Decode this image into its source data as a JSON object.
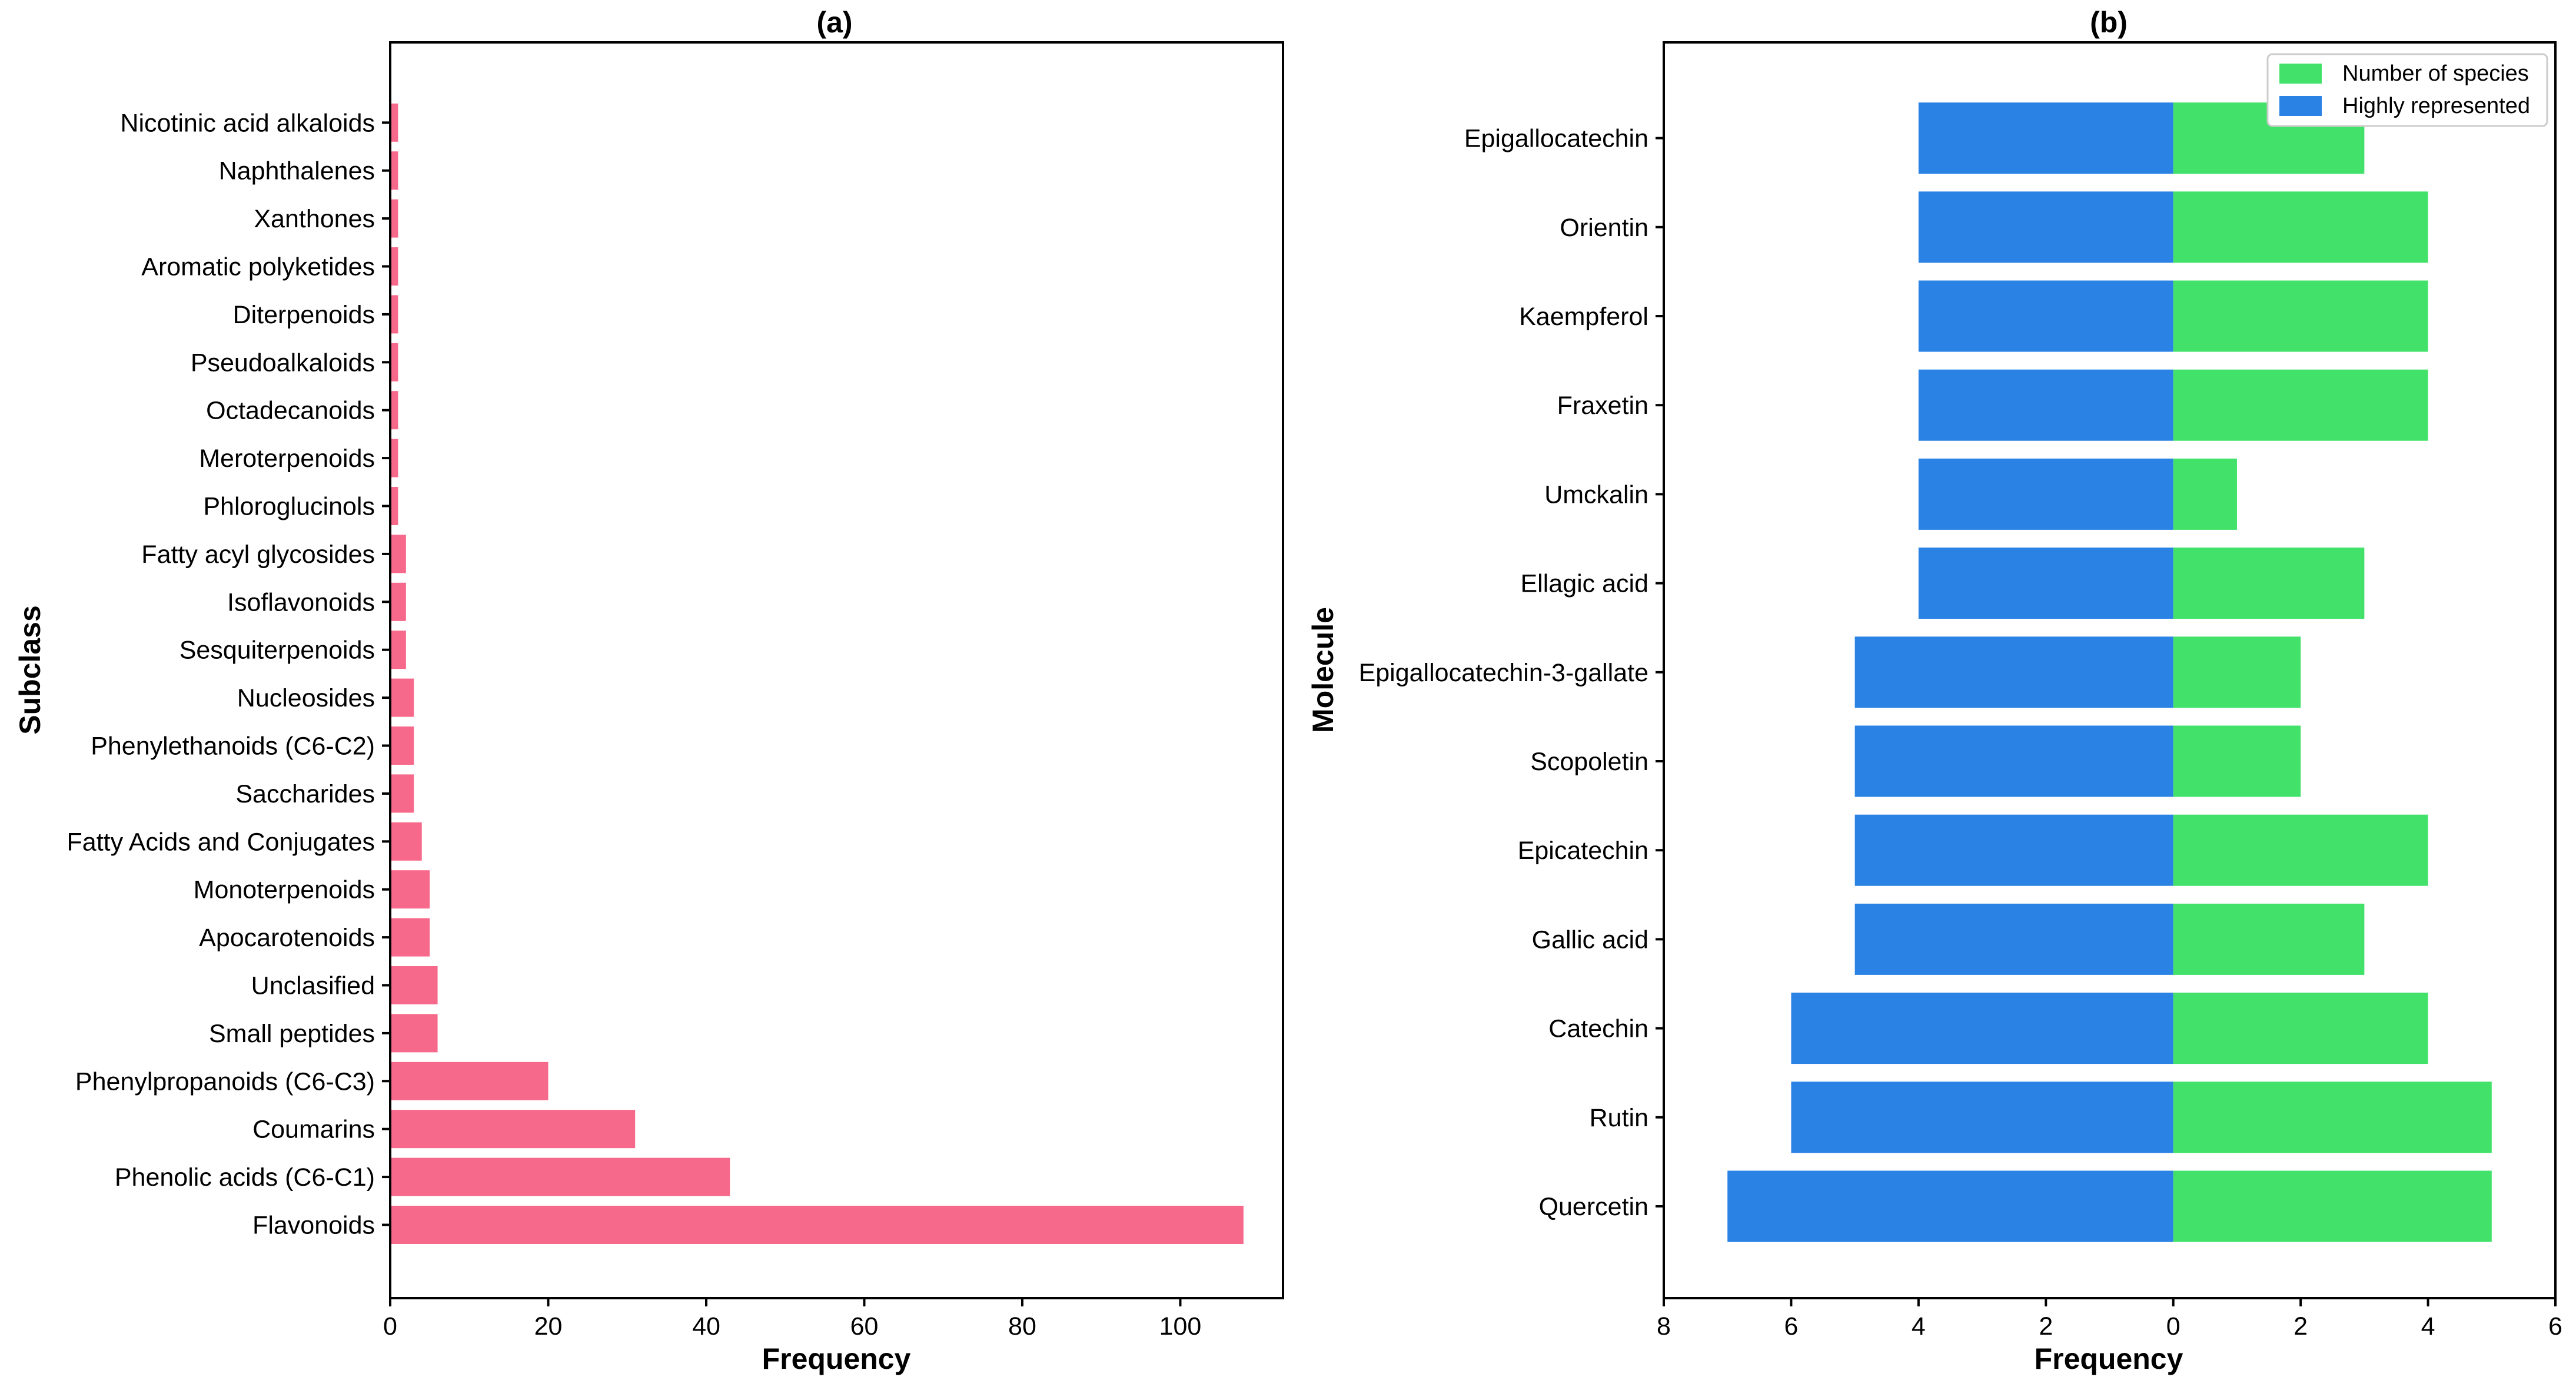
{
  "chart_data": [
    {
      "type": "bar",
      "orientation": "horizontal",
      "title": "(a)",
      "xlabel": "Frequency",
      "ylabel": "Subclass",
      "xlim": [
        0,
        113
      ],
      "xticks": [
        0,
        20,
        40,
        60,
        80,
        100
      ],
      "bar_color": "#f7698b",
      "categories": [
        "Flavonoids",
        "Phenolic acids (C6-C1)",
        "Coumarins",
        "Phenylpropanoids (C6-C3)",
        "Small peptides",
        "Unclasified",
        "Apocarotenoids",
        "Monoterpenoids",
        "Fatty Acids and Conjugates",
        "Saccharides",
        "Phenylethanoids (C6-C2)",
        "Nucleosides",
        "Sesquiterpenoids",
        "Isoflavonoids",
        "Fatty acyl glycosides",
        "Phloroglucinols",
        "Meroterpenoids",
        "Octadecanoids",
        "Pseudoalkaloids",
        "Diterpenoids",
        "Aromatic polyketides",
        "Xanthones",
        "Naphthalenes",
        "Nicotinic acid alkaloids"
      ],
      "values": [
        108,
        43,
        31,
        20,
        6,
        6,
        5,
        5,
        4,
        3,
        3,
        3,
        2,
        2,
        2,
        1,
        1,
        1,
        1,
        1,
        1,
        1,
        1,
        1
      ]
    },
    {
      "type": "bar",
      "orientation": "horizontal",
      "layout": "diverging",
      "title": "(b)",
      "xlabel": "Frequency",
      "ylabel": "Molecule",
      "xlim": [
        -8,
        6
      ],
      "xticks": [
        -8,
        -6,
        -4,
        -2,
        0,
        2,
        4,
        6
      ],
      "xtick_labels": [
        "8",
        "6",
        "4",
        "2",
        "0",
        "2",
        "4",
        "6"
      ],
      "legend_position": "top-right",
      "categories": [
        "Quercetin",
        "Rutin",
        "Catechin",
        "Gallic acid",
        "Epicatechin",
        "Scopoletin",
        "Epigallocatechin-3-gallate",
        "Ellagic acid",
        "Umckalin",
        "Fraxetin",
        "Kaempferol",
        "Orientin",
        "Epigallocatechin"
      ],
      "series": [
        {
          "name": "Number of species",
          "color": "#42e26a",
          "direction": "right",
          "values": [
            5,
            5,
            4,
            3,
            4,
            2,
            2,
            3,
            1,
            4,
            4,
            4,
            3
          ]
        },
        {
          "name": "Highly represented",
          "color": "#2a82e4",
          "direction": "left",
          "values": [
            7,
            6,
            6,
            5,
            5,
            5,
            5,
            4,
            4,
            4,
            4,
            4,
            4
          ]
        }
      ]
    }
  ]
}
